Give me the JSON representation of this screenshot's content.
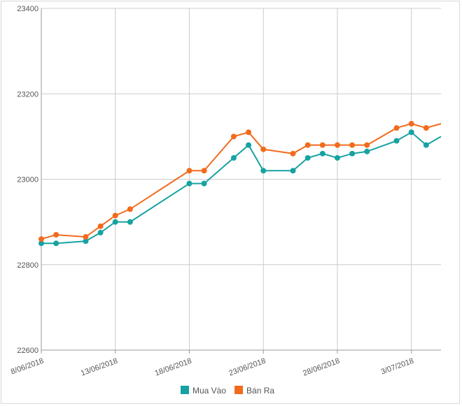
{
  "chart_data": {
    "type": "line",
    "title": "",
    "xlabel": "",
    "ylabel": "",
    "ylim": [
      22600,
      23400
    ],
    "y_ticks": [
      22600,
      22800,
      23000,
      23200,
      23400
    ],
    "x_range": [
      0,
      27
    ],
    "x_ticks": [
      {
        "day": 0,
        "label": "8/06/2018"
      },
      {
        "day": 5,
        "label": "13/06/2018"
      },
      {
        "day": 10,
        "label": "18/06/2018"
      },
      {
        "day": 15,
        "label": "23/06/2018"
      },
      {
        "day": 20,
        "label": "28/06/2018"
      },
      {
        "day": 25,
        "label": "3/07/2018"
      }
    ],
    "grid": true,
    "legend_position": "bottom-center",
    "series": [
      {
        "name": "Mua Vào",
        "color": "#17a2a2",
        "points": [
          {
            "day": 0,
            "value": 22850
          },
          {
            "day": 1,
            "value": 22850
          },
          {
            "day": 3,
            "value": 22855
          },
          {
            "day": 4,
            "value": 22875
          },
          {
            "day": 5,
            "value": 22900
          },
          {
            "day": 6,
            "value": 22900
          },
          {
            "day": 10,
            "value": 22990
          },
          {
            "day": 11,
            "value": 22990
          },
          {
            "day": 13,
            "value": 23050
          },
          {
            "day": 14,
            "value": 23080
          },
          {
            "day": 15,
            "value": 23020
          },
          {
            "day": 17,
            "value": 23020
          },
          {
            "day": 18,
            "value": 23050
          },
          {
            "day": 19,
            "value": 23060
          },
          {
            "day": 20,
            "value": 23050
          },
          {
            "day": 21,
            "value": 23060
          },
          {
            "day": 22,
            "value": 23065
          },
          {
            "day": 24,
            "value": 23090
          },
          {
            "day": 25,
            "value": 23110
          },
          {
            "day": 26,
            "value": 23080
          },
          {
            "day": 27,
            "value": 23100
          }
        ]
      },
      {
        "name": "Bán Ra",
        "color": "#f26b1d",
        "points": [
          {
            "day": 0,
            "value": 22860
          },
          {
            "day": 1,
            "value": 22870
          },
          {
            "day": 3,
            "value": 22865
          },
          {
            "day": 4,
            "value": 22890
          },
          {
            "day": 5,
            "value": 22915
          },
          {
            "day": 6,
            "value": 22930
          },
          {
            "day": 10,
            "value": 23020
          },
          {
            "day": 11,
            "value": 23020
          },
          {
            "day": 13,
            "value": 23100
          },
          {
            "day": 14,
            "value": 23110
          },
          {
            "day": 15,
            "value": 23070
          },
          {
            "day": 17,
            "value": 23060
          },
          {
            "day": 18,
            "value": 23080
          },
          {
            "day": 19,
            "value": 23080
          },
          {
            "day": 20,
            "value": 23080
          },
          {
            "day": 21,
            "value": 23080
          },
          {
            "day": 22,
            "value": 23080
          },
          {
            "day": 24,
            "value": 23120
          },
          {
            "day": 25,
            "value": 23130
          },
          {
            "day": 26,
            "value": 23120
          },
          {
            "day": 27,
            "value": 23130
          }
        ]
      }
    ]
  }
}
